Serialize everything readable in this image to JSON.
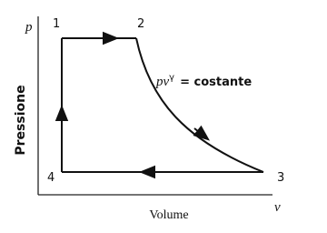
{
  "axes": {
    "y_symbol": "p",
    "y_label": "Pressione",
    "x_label": "Volume",
    "x_symbol": "v"
  },
  "nodes": [
    {
      "label": "1"
    },
    {
      "label": "2"
    },
    {
      "label": "3"
    },
    {
      "label": "4"
    }
  ],
  "annotation": {
    "base": "pv",
    "exponent": "γ",
    "rest": "= costante"
  }
}
